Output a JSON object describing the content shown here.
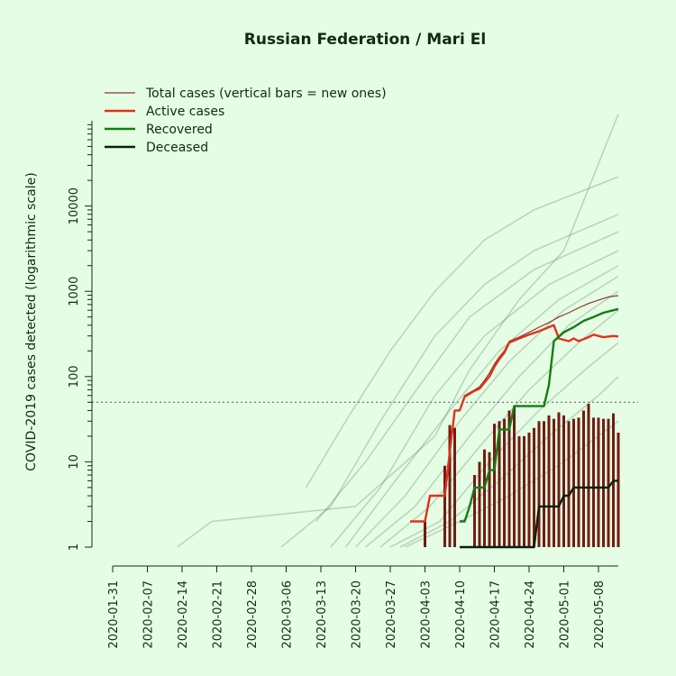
{
  "chart_data": {
    "type": "line",
    "title": "Russian Federation / Mari El",
    "xlabel": "",
    "ylabel": "COVID-2019 cases detected (logarithmic scale)",
    "y_scale": "log",
    "ylim": [
      1,
      100000
    ],
    "x_start": "2020-01-31",
    "x_end": "2020-05-12",
    "x_tick_labels": [
      "2020-01-31",
      "2020-02-07",
      "2020-02-14",
      "2020-02-21",
      "2020-02-28",
      "2020-03-06",
      "2020-03-13",
      "2020-03-20",
      "2020-03-27",
      "2020-04-03",
      "2020-04-10",
      "2020-04-17",
      "2020-04-24",
      "2020-05-01",
      "2020-05-08"
    ],
    "y_ticks": [
      1,
      10,
      100,
      1000,
      10000
    ],
    "y_tick_labels": [
      "1",
      "10",
      "100",
      "1000",
      "10000"
    ],
    "reference_line": 50,
    "legend_position": "top-left",
    "legend": [
      {
        "label": "Total cases (vertical bars = new ones)",
        "color": "#8b3a2a"
      },
      {
        "label": "Active cases",
        "color": "#e3301c"
      },
      {
        "label": "Recovered",
        "color": "#137d13"
      },
      {
        "label": "Deceased",
        "color": "#0a1f0a"
      }
    ],
    "colors": {
      "background": "#e5fde5",
      "total": "#8b3a2a",
      "active": "#e3301c",
      "recovered": "#137d13",
      "deceased": "#0a1f0a",
      "new_bars": "#701d10",
      "background_regions": "#4f6f55"
    },
    "series": [
      {
        "name": "Total cases (vertical bars = new ones)",
        "points": [
          [
            "2020-03-31",
            2
          ],
          [
            "2020-04-03",
            2
          ],
          [
            "2020-04-04",
            4
          ],
          [
            "2020-04-07",
            4
          ],
          [
            "2020-04-08",
            13
          ],
          [
            "2020-04-09",
            40
          ],
          [
            "2020-04-10",
            40
          ],
          [
            "2020-04-11",
            60
          ],
          [
            "2020-04-13",
            70
          ],
          [
            "2020-04-14",
            76
          ],
          [
            "2020-04-15",
            90
          ],
          [
            "2020-04-16",
            110
          ],
          [
            "2020-04-17",
            140
          ],
          [
            "2020-04-18",
            170
          ],
          [
            "2020-04-19",
            200
          ],
          [
            "2020-04-20",
            260
          ],
          [
            "2020-04-22",
            290
          ],
          [
            "2020-04-24",
            330
          ],
          [
            "2020-04-26",
            380
          ],
          [
            "2020-04-28",
            430
          ],
          [
            "2020-04-30",
            500
          ],
          [
            "2020-05-02",
            560
          ],
          [
            "2020-05-04",
            640
          ],
          [
            "2020-05-06",
            720
          ],
          [
            "2020-05-08",
            790
          ],
          [
            "2020-05-10",
            860
          ],
          [
            "2020-05-12",
            890
          ]
        ]
      },
      {
        "name": "Active cases",
        "points": [
          [
            "2020-03-31",
            2
          ],
          [
            "2020-04-03",
            2
          ],
          [
            "2020-04-04",
            4
          ],
          [
            "2020-04-07",
            4
          ],
          [
            "2020-04-08",
            13
          ],
          [
            "2020-04-09",
            40
          ],
          [
            "2020-04-10",
            40
          ],
          [
            "2020-04-11",
            58
          ],
          [
            "2020-04-13",
            68
          ],
          [
            "2020-04-14",
            72
          ],
          [
            "2020-04-15",
            85
          ],
          [
            "2020-04-16",
            100
          ],
          [
            "2020-04-17",
            130
          ],
          [
            "2020-04-18",
            160
          ],
          [
            "2020-04-19",
            190
          ],
          [
            "2020-04-20",
            250
          ],
          [
            "2020-04-22",
            280
          ],
          [
            "2020-04-24",
            310
          ],
          [
            "2020-04-26",
            340
          ],
          [
            "2020-04-28",
            380
          ],
          [
            "2020-04-29",
            400
          ],
          [
            "2020-04-30",
            280
          ],
          [
            "2020-05-02",
            260
          ],
          [
            "2020-05-03",
            280
          ],
          [
            "2020-05-04",
            260
          ],
          [
            "2020-05-05",
            275
          ],
          [
            "2020-05-06",
            290
          ],
          [
            "2020-05-07",
            310
          ],
          [
            "2020-05-08",
            300
          ],
          [
            "2020-05-09",
            290
          ],
          [
            "2020-05-10",
            295
          ],
          [
            "2020-05-11",
            300
          ],
          [
            "2020-05-12",
            295
          ]
        ]
      },
      {
        "name": "Recovered",
        "points": [
          [
            "2020-04-10",
            2
          ],
          [
            "2020-04-11",
            2
          ],
          [
            "2020-04-12",
            3
          ],
          [
            "2020-04-13",
            5
          ],
          [
            "2020-04-15",
            5
          ],
          [
            "2020-04-16",
            8
          ],
          [
            "2020-04-17",
            8
          ],
          [
            "2020-04-18",
            24
          ],
          [
            "2020-04-20",
            24
          ],
          [
            "2020-04-21",
            45
          ],
          [
            "2020-04-27",
            45
          ],
          [
            "2020-04-28",
            80
          ],
          [
            "2020-04-29",
            260
          ],
          [
            "2020-05-01",
            330
          ],
          [
            "2020-05-03",
            380
          ],
          [
            "2020-05-05",
            450
          ],
          [
            "2020-05-07",
            500
          ],
          [
            "2020-05-09",
            560
          ],
          [
            "2020-05-12",
            620
          ]
        ]
      },
      {
        "name": "Deceased",
        "points": [
          [
            "2020-04-10",
            1
          ],
          [
            "2020-04-25",
            1
          ],
          [
            "2020-04-26",
            3
          ],
          [
            "2020-04-30",
            3
          ],
          [
            "2020-05-01",
            4
          ],
          [
            "2020-05-02",
            4
          ],
          [
            "2020-05-03",
            5
          ],
          [
            "2020-05-10",
            5
          ],
          [
            "2020-05-11",
            6
          ],
          [
            "2020-05-12",
            6
          ]
        ]
      }
    ],
    "new_cases_bars": [
      [
        "2020-04-03",
        2
      ],
      [
        "2020-04-07",
        9
      ],
      [
        "2020-04-08",
        27
      ],
      [
        "2020-04-09",
        25
      ],
      [
        "2020-04-13",
        7
      ],
      [
        "2020-04-14",
        10
      ],
      [
        "2020-04-15",
        14
      ],
      [
        "2020-04-16",
        13
      ],
      [
        "2020-04-17",
        28
      ],
      [
        "2020-04-18",
        30
      ],
      [
        "2020-04-19",
        32
      ],
      [
        "2020-04-20",
        40
      ],
      [
        "2020-04-21",
        45
      ],
      [
        "2020-04-22",
        20
      ],
      [
        "2020-04-23",
        20
      ],
      [
        "2020-04-24",
        22
      ],
      [
        "2020-04-25",
        25
      ],
      [
        "2020-04-26",
        30
      ],
      [
        "2020-04-27",
        30
      ],
      [
        "2020-04-28",
        35
      ],
      [
        "2020-04-29",
        32
      ],
      [
        "2020-04-30",
        38
      ],
      [
        "2020-05-01",
        35
      ],
      [
        "2020-05-02",
        30
      ],
      [
        "2020-05-03",
        32
      ],
      [
        "2020-05-04",
        33
      ],
      [
        "2020-05-05",
        40
      ],
      [
        "2020-05-06",
        48
      ],
      [
        "2020-05-07",
        33
      ],
      [
        "2020-05-08",
        33
      ],
      [
        "2020-05-09",
        32
      ],
      [
        "2020-05-10",
        32
      ],
      [
        "2020-05-11",
        37
      ],
      [
        "2020-05-12",
        22
      ]
    ],
    "background_regions_note": "",
    "background_regions": [
      {
        "start": "2020-02-13",
        "points": [
          [
            "2020-02-13",
            1
          ],
          [
            "2020-02-20",
            2
          ],
          [
            "2020-03-20",
            3
          ],
          [
            "2020-04-05",
            20
          ],
          [
            "2020-04-12",
            120
          ],
          [
            "2020-04-22",
            800
          ],
          [
            "2020-05-01",
            3000
          ],
          [
            "2020-05-12",
            120000
          ]
        ]
      },
      {
        "start": "2020-03-10",
        "points": [
          [
            "2020-03-10",
            5
          ],
          [
            "2020-03-18",
            30
          ],
          [
            "2020-03-27",
            200
          ],
          [
            "2020-04-05",
            1000
          ],
          [
            "2020-04-15",
            4000
          ],
          [
            "2020-04-25",
            9000
          ],
          [
            "2020-05-12",
            22000
          ]
        ]
      },
      {
        "start": "2020-03-05",
        "points": [
          [
            "2020-03-05",
            1
          ],
          [
            "2020-03-15",
            3
          ],
          [
            "2020-03-25",
            30
          ],
          [
            "2020-04-05",
            300
          ],
          [
            "2020-04-15",
            1200
          ],
          [
            "2020-04-25",
            3000
          ],
          [
            "2020-05-12",
            8000
          ]
        ]
      },
      {
        "start": "2020-03-12",
        "points": [
          [
            "2020-03-12",
            2
          ],
          [
            "2020-03-22",
            10
          ],
          [
            "2020-04-02",
            80
          ],
          [
            "2020-04-12",
            500
          ],
          [
            "2020-04-25",
            1800
          ],
          [
            "2020-05-12",
            5000
          ]
        ]
      },
      {
        "start": "2020-03-15",
        "points": [
          [
            "2020-03-15",
            1
          ],
          [
            "2020-03-25",
            5
          ],
          [
            "2020-04-05",
            60
          ],
          [
            "2020-04-15",
            300
          ],
          [
            "2020-04-28",
            1200
          ],
          [
            "2020-05-12",
            3000
          ]
        ]
      },
      {
        "start": "2020-03-18",
        "points": [
          [
            "2020-03-18",
            1
          ],
          [
            "2020-03-28",
            6
          ],
          [
            "2020-04-08",
            40
          ],
          [
            "2020-04-18",
            200
          ],
          [
            "2020-04-30",
            800
          ],
          [
            "2020-05-12",
            2000
          ]
        ]
      },
      {
        "start": "2020-03-20",
        "points": [
          [
            "2020-03-20",
            1
          ],
          [
            "2020-03-30",
            4
          ],
          [
            "2020-04-10",
            30
          ],
          [
            "2020-04-20",
            150
          ],
          [
            "2020-05-01",
            600
          ],
          [
            "2020-05-12",
            1500
          ]
        ]
      },
      {
        "start": "2020-03-22",
        "points": [
          [
            "2020-03-22",
            1
          ],
          [
            "2020-04-01",
            3
          ],
          [
            "2020-04-12",
            20
          ],
          [
            "2020-04-22",
            100
          ],
          [
            "2020-05-02",
            400
          ],
          [
            "2020-05-12",
            1000
          ]
        ]
      },
      {
        "start": "2020-03-25",
        "points": [
          [
            "2020-03-25",
            1
          ],
          [
            "2020-04-04",
            3
          ],
          [
            "2020-04-14",
            15
          ],
          [
            "2020-04-24",
            70
          ],
          [
            "2020-05-04",
            250
          ],
          [
            "2020-05-12",
            600
          ]
        ]
      },
      {
        "start": "2020-03-27",
        "points": [
          [
            "2020-03-27",
            1
          ],
          [
            "2020-04-06",
            2
          ],
          [
            "2020-04-16",
            10
          ],
          [
            "2020-04-26",
            40
          ],
          [
            "2020-05-06",
            130
          ],
          [
            "2020-05-12",
            250
          ]
        ]
      },
      {
        "start": "2020-03-29",
        "points": [
          [
            "2020-03-29",
            1
          ],
          [
            "2020-04-08",
            2
          ],
          [
            "2020-04-18",
            6
          ],
          [
            "2020-04-28",
            20
          ],
          [
            "2020-05-08",
            60
          ],
          [
            "2020-05-12",
            100
          ]
        ]
      },
      {
        "start": "2020-03-30",
        "points": [
          [
            "2020-03-30",
            1
          ],
          [
            "2020-04-10",
            2
          ],
          [
            "2020-04-20",
            4
          ],
          [
            "2020-05-01",
            10
          ],
          [
            "2020-05-12",
            30
          ]
        ]
      }
    ]
  }
}
